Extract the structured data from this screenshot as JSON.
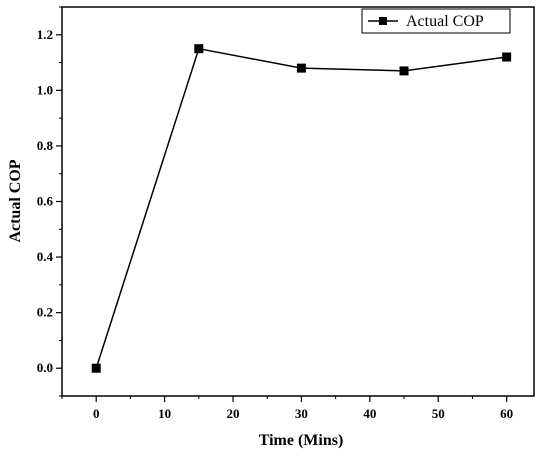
{
  "chart_data": {
    "type": "line",
    "x": [
      0,
      15,
      30,
      45,
      60
    ],
    "series": [
      {
        "name": "Actual COP",
        "values": [
          0.0,
          1.15,
          1.08,
          1.07,
          1.12
        ]
      }
    ],
    "xlabel": "Time (Mins)",
    "ylabel": "Actual COP",
    "xlim": [
      -5,
      64
    ],
    "ylim": [
      -0.1,
      1.3
    ],
    "xticks": [
      "0",
      "10",
      "20",
      "30",
      "40",
      "50",
      "60"
    ],
    "yticks": [
      "0.0",
      "0.2",
      "0.4",
      "0.6",
      "0.8",
      "1.0",
      "1.2"
    ],
    "grid": false,
    "legend": "top-right",
    "colors": {
      "line": "#000000",
      "marker": "#000000"
    },
    "marker": "square"
  }
}
